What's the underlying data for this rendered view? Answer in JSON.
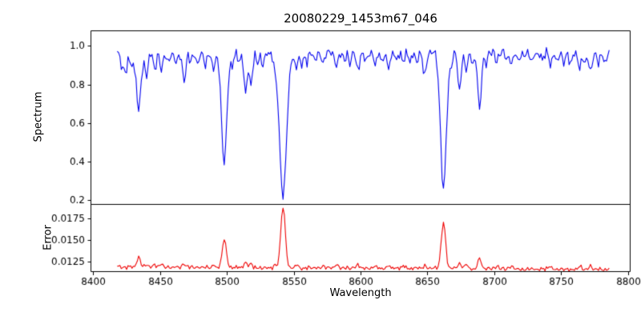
{
  "chart_data": {
    "type": "line",
    "title": "20080229_1453m67_046",
    "xlabel": "Wavelength",
    "grid": false,
    "legend": "none",
    "xlim": [
      8398,
      8802
    ],
    "xticks": [
      8400,
      8450,
      8500,
      8550,
      8600,
      8650,
      8700,
      8750,
      8800
    ],
    "xtick_labels": [
      "8400",
      "8450",
      "8500",
      "8550",
      "8600",
      "8650",
      "8700",
      "8750",
      "8800"
    ],
    "panels": [
      {
        "name": "spectrum",
        "ylabel": "Spectrum",
        "color": "#0000ee",
        "ylim": [
          0.18,
          1.08
        ],
        "yticks": [
          0.2,
          0.4,
          0.6,
          0.8,
          1.0
        ],
        "ytick_labels": [
          "0.2",
          "0.4",
          "0.6",
          "0.8",
          "1.0"
        ],
        "x_start": 8418,
        "x_end": 8786,
        "x_step": 1.0,
        "continuum": 0.963,
        "noise_amplitude": 0.024,
        "absorption_lines": [
          [
            8421,
            0.06,
            1.0
          ],
          [
            8424,
            0.1,
            1.2
          ],
          [
            8428,
            0.07,
            1.0
          ],
          [
            8431,
            0.08,
            1.0
          ],
          [
            8434,
            0.31,
            1.2
          ],
          [
            8437,
            0.08,
            1.0
          ],
          [
            8440,
            0.12,
            1.0
          ],
          [
            8446,
            0.09,
            1.0
          ],
          [
            8451,
            0.1,
            1.1
          ],
          [
            8456,
            0.05,
            1.0
          ],
          [
            8462,
            0.06,
            1.0
          ],
          [
            8468,
            0.14,
            1.3
          ],
          [
            8473,
            0.05,
            1.0
          ],
          [
            8478,
            0.06,
            1.0
          ],
          [
            8484,
            0.07,
            1.0
          ],
          [
            8490,
            0.09,
            1.0
          ],
          [
            8498,
            0.57,
            2.0
          ],
          [
            8504,
            0.06,
            1.0
          ],
          [
            8509,
            0.05,
            1.0
          ],
          [
            8514,
            0.2,
            1.2
          ],
          [
            8518,
            0.17,
            1.1
          ],
          [
            8523,
            0.05,
            1.0
          ],
          [
            8527,
            0.06,
            1.0
          ],
          [
            8536,
            0.06,
            1.0
          ],
          [
            8542,
            0.75,
            2.6
          ],
          [
            8552,
            0.07,
            1.2
          ],
          [
            8556,
            0.05,
            1.0
          ],
          [
            8560,
            0.05,
            1.0
          ],
          [
            8566,
            0.04,
            1.0
          ],
          [
            8572,
            0.05,
            1.0
          ],
          [
            8582,
            0.07,
            1.2
          ],
          [
            8588,
            0.04,
            1.0
          ],
          [
            8592,
            0.05,
            1.0
          ],
          [
            8598,
            0.09,
            1.2
          ],
          [
            8604,
            0.04,
            1.0
          ],
          [
            8611,
            0.06,
            1.0
          ],
          [
            8616,
            0.04,
            1.0
          ],
          [
            8621,
            0.08,
            1.2
          ],
          [
            8627,
            0.04,
            1.0
          ],
          [
            8632,
            0.05,
            1.0
          ],
          [
            8637,
            0.04,
            1.0
          ],
          [
            8642,
            0.06,
            1.0
          ],
          [
            8648,
            0.11,
            1.2
          ],
          [
            8662,
            0.7,
            2.2
          ],
          [
            8668,
            0.06,
            1.0
          ],
          [
            8674,
            0.19,
            1.2
          ],
          [
            8679,
            0.1,
            1.0
          ],
          [
            8684,
            0.05,
            1.0
          ],
          [
            8689,
            0.3,
            1.3
          ],
          [
            8694,
            0.06,
            1.0
          ],
          [
            8702,
            0.05,
            1.0
          ],
          [
            8710,
            0.04,
            1.0
          ],
          [
            8713,
            0.06,
            1.0
          ],
          [
            8718,
            0.04,
            1.0
          ],
          [
            8728,
            0.05,
            1.0
          ],
          [
            8736,
            0.04,
            1.0
          ],
          [
            8742,
            0.07,
            1.0
          ],
          [
            8747,
            0.04,
            1.0
          ],
          [
            8752,
            0.05,
            1.0
          ],
          [
            8757,
            0.05,
            1.0
          ],
          [
            8764,
            0.08,
            1.1
          ],
          [
            8768,
            0.05,
            1.0
          ],
          [
            8772,
            0.1,
            1.1
          ],
          [
            8778,
            0.06,
            1.0
          ],
          [
            8783,
            0.05,
            1.0
          ]
        ]
      },
      {
        "name": "error",
        "ylabel": "Error",
        "color": "#ee0000",
        "ylim": [
          0.0113,
          0.0192
        ],
        "yticks": [
          0.0125,
          0.015,
          0.0175
        ],
        "ytick_labels": [
          "0.0125",
          "0.0150",
          "0.0175"
        ],
        "x_start": 8418,
        "x_end": 8786,
        "x_step": 1.0,
        "baseline": 0.0119,
        "baseline_slope": -8e-07,
        "noise_amplitude": 0.00022,
        "emission_peaks": [
          [
            8434,
            0.0012,
            1.3
          ],
          [
            8440,
            0.0003,
            1.0
          ],
          [
            8446,
            0.0003,
            1.0
          ],
          [
            8451,
            0.0003,
            1.0
          ],
          [
            8468,
            0.0004,
            1.2
          ],
          [
            8490,
            0.0003,
            1.0
          ],
          [
            8498,
            0.0033,
            1.5
          ],
          [
            8514,
            0.0007,
            1.2
          ],
          [
            8518,
            0.0005,
            1.1
          ],
          [
            8536,
            0.0003,
            1.0
          ],
          [
            8542,
            0.007,
            1.7
          ],
          [
            8552,
            0.0004,
            1.2
          ],
          [
            8572,
            0.0003,
            1.0
          ],
          [
            8582,
            0.0004,
            1.1
          ],
          [
            8598,
            0.0004,
            1.1
          ],
          [
            8611,
            0.0003,
            1.0
          ],
          [
            8621,
            0.0003,
            1.0
          ],
          [
            8632,
            0.0003,
            1.0
          ],
          [
            8648,
            0.0004,
            1.1
          ],
          [
            8662,
            0.0054,
            1.6
          ],
          [
            8674,
            0.0007,
            1.2
          ],
          [
            8679,
            0.0005,
            1.1
          ],
          [
            8689,
            0.0012,
            1.3
          ],
          [
            8702,
            0.0003,
            1.0
          ],
          [
            8713,
            0.0003,
            1.0
          ],
          [
            8742,
            0.0003,
            1.0
          ],
          [
            8764,
            0.0004,
            1.1
          ],
          [
            8772,
            0.0004,
            1.1
          ]
        ]
      }
    ]
  }
}
